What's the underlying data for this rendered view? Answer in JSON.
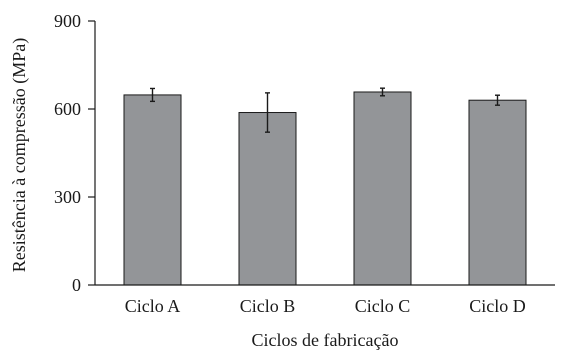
{
  "chart_data": {
    "type": "bar",
    "title": "",
    "xlabel": "Ciclos de fabricação",
    "ylabel": "Resistência à compressão (MPa)",
    "categories": [
      "Ciclo A",
      "Ciclo B",
      "Ciclo C",
      "Ciclo D"
    ],
    "values": [
      648,
      588,
      658,
      630
    ],
    "error": [
      22,
      67,
      13,
      17
    ],
    "ylim": [
      0,
      900
    ],
    "yticks": [
      "0",
      "300",
      "600",
      "900"
    ],
    "grid": false,
    "legend": "none",
    "bar_color": "#939598"
  }
}
